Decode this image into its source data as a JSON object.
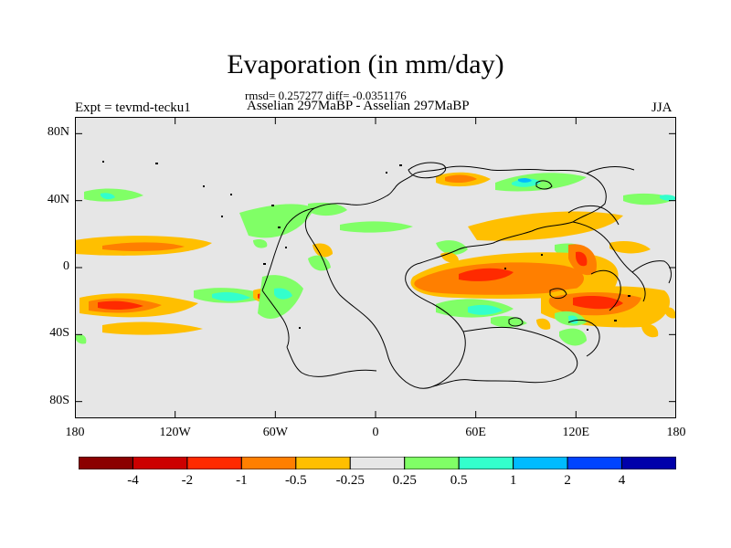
{
  "title": "Evaporation (in mm/day)",
  "stats": "rmsd= 0.257277 diff= -0.0351176",
  "expt_label": "Expt = tevmd-tecku1",
  "comparison": "Asselian 297MaBP - Asselian 297MaBP",
  "season": "JJA",
  "lat_ticks": [
    {
      "label": "80N",
      "lat": 80
    },
    {
      "label": "40N",
      "lat": 40
    },
    {
      "label": "0",
      "lat": 0
    },
    {
      "label": "40S",
      "lat": -40
    },
    {
      "label": "80S",
      "lat": -80
    }
  ],
  "lon_ticks": [
    {
      "label": "180",
      "lon": -180
    },
    {
      "label": "120W",
      "lon": -120
    },
    {
      "label": "60W",
      "lon": -60
    },
    {
      "label": "0",
      "lon": 0
    },
    {
      "label": "60E",
      "lon": 60
    },
    {
      "label": "120E",
      "lon": 120
    },
    {
      "label": "180",
      "lon": 180
    }
  ],
  "colorbar": {
    "colors": [
      "#8b0000",
      "#cc0000",
      "#ff2a00",
      "#ff7f00",
      "#ffbf00",
      "#e6e6e6",
      "#80ff66",
      "#33ffcc",
      "#00bbff",
      "#0044ff",
      "#0000aa"
    ],
    "labels": [
      "-4",
      "-2",
      "-1",
      "-0.5",
      "-0.25",
      "0.25",
      "0.5",
      "1",
      "2",
      "4"
    ]
  },
  "background_color": "#e6e6e6"
}
